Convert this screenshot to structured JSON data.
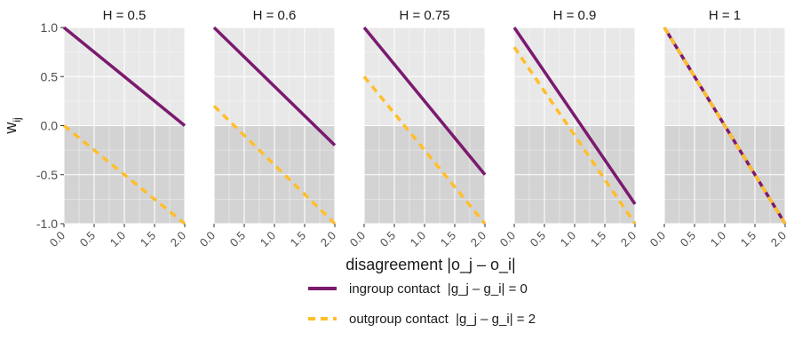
{
  "chart_data": {
    "type": "line",
    "ylabel": "w",
    "ylabel_sub": "ij",
    "xlabel": "disagreement",
    "xlabel_math": "|o_j – o_i|",
    "x": [
      0,
      2
    ],
    "xlim": [
      0,
      2
    ],
    "ylim": [
      -1,
      1
    ],
    "x_ticks": [
      "0.0",
      "0.5",
      "1.0",
      "1.5",
      "2.0"
    ],
    "y_ticks": [
      "1.0",
      "0.5",
      "0.0",
      "-0.5",
      "-1.0"
    ],
    "x_tick_values": [
      0,
      0.5,
      1,
      1.5,
      2
    ],
    "y_tick_values": [
      1,
      0.5,
      0,
      -0.5,
      -1
    ],
    "shading": {
      "above_zero": "#e8e8e8",
      "below_zero": "#d3d3d3"
    },
    "grid": true,
    "legend_position": "bottom",
    "panels": [
      {
        "title": "H = 0.5",
        "series": [
          {
            "name": "ingroup contact",
            "x": [
              0,
              2
            ],
            "values": [
              1.0,
              0.0
            ]
          },
          {
            "name": "outgroup contact",
            "x": [
              0,
              2
            ],
            "values": [
              0.0,
              -1.0
            ]
          }
        ]
      },
      {
        "title": "H = 0.6",
        "series": [
          {
            "name": "ingroup contact",
            "x": [
              0,
              2
            ],
            "values": [
              1.0,
              -0.2
            ]
          },
          {
            "name": "outgroup contact",
            "x": [
              0,
              2
            ],
            "values": [
              0.2,
              -1.0
            ]
          }
        ]
      },
      {
        "title": "H = 0.75",
        "series": [
          {
            "name": "ingroup contact",
            "x": [
              0,
              2
            ],
            "values": [
              1.0,
              -0.5
            ]
          },
          {
            "name": "outgroup contact",
            "x": [
              0,
              2
            ],
            "values": [
              0.5,
              -1.0
            ]
          }
        ]
      },
      {
        "title": "H = 0.9",
        "series": [
          {
            "name": "ingroup contact",
            "x": [
              0,
              2
            ],
            "values": [
              1.0,
              -0.8
            ]
          },
          {
            "name": "outgroup contact",
            "x": [
              0,
              2
            ],
            "values": [
              0.8,
              -1.0
            ]
          }
        ]
      },
      {
        "title": "H = 1",
        "series": [
          {
            "name": "ingroup contact",
            "x": [
              0,
              2
            ],
            "values": [
              1.0,
              -1.0
            ]
          },
          {
            "name": "outgroup contact",
            "x": [
              0,
              2
            ],
            "values": [
              1.0,
              -1.0
            ]
          }
        ]
      }
    ],
    "legend": [
      {
        "label": "ingroup contact",
        "math": "|g_j – g_i| = 0",
        "color": "#7b1a6f",
        "style": "solid"
      },
      {
        "label": "outgroup contact",
        "math": "|g_j – g_i| = 2",
        "color": "#ffbe2a",
        "style": "dashed"
      }
    ]
  }
}
